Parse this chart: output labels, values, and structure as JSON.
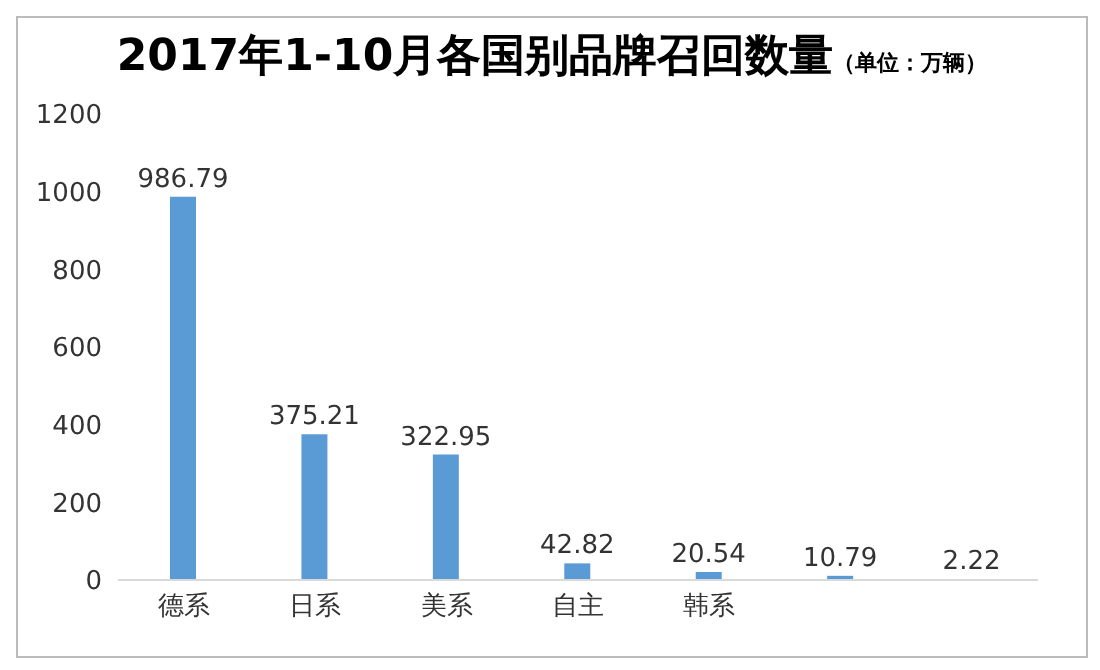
{
  "chart_data": {
    "type": "bar",
    "title": "2017年1-10月各国别品牌召回数量",
    "subtitle": "（单位：万辆）",
    "categories": [
      "德系",
      "日系",
      "美系",
      "自主",
      "韩系",
      null,
      null
    ],
    "values": [
      986.79,
      375.21,
      322.95,
      42.82,
      20.54,
      10.79,
      2.22
    ],
    "color": "#5b9bd5",
    "ylim": [
      0,
      1200
    ],
    "yticks": [
      0,
      200,
      400,
      600,
      800,
      1000,
      1200
    ],
    "grid": false,
    "data_labels": true,
    "legend": false
  }
}
